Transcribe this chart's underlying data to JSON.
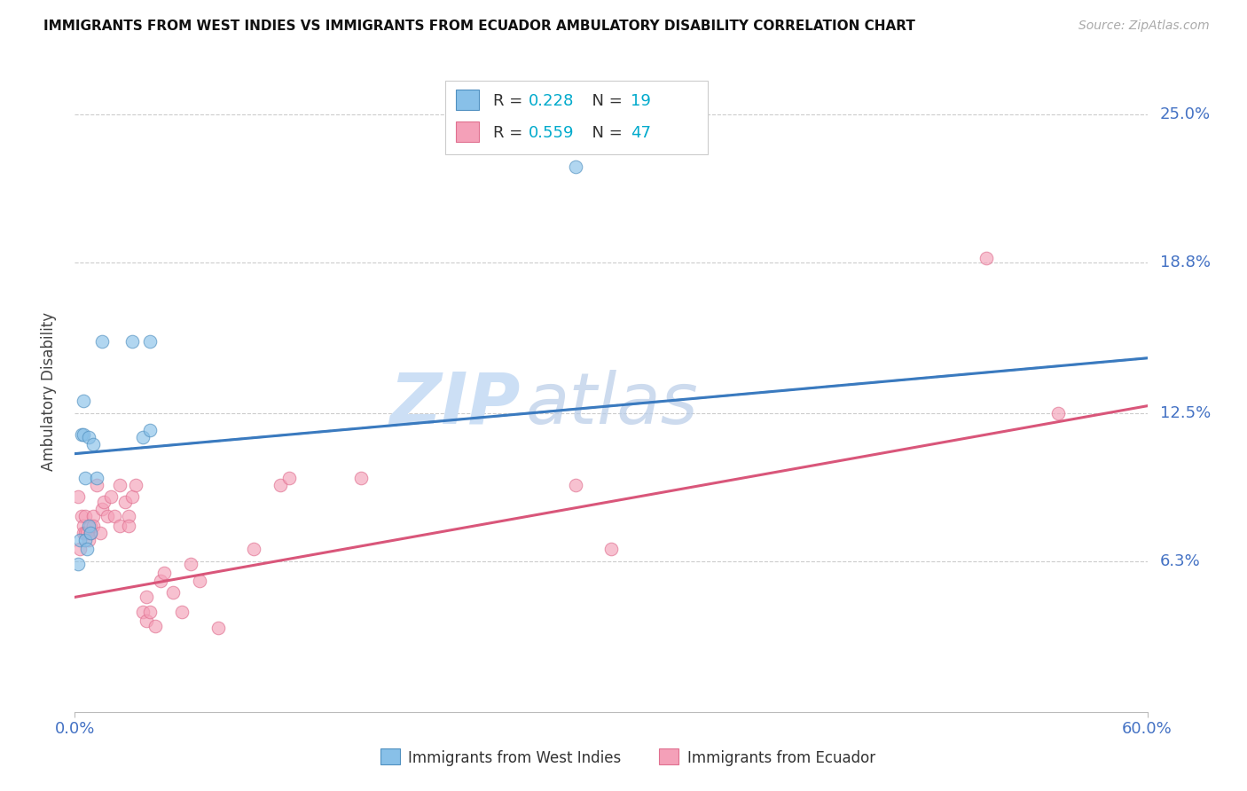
{
  "title": "IMMIGRANTS FROM WEST INDIES VS IMMIGRANTS FROM ECUADOR AMBULATORY DISABILITY CORRELATION CHART",
  "source": "Source: ZipAtlas.com",
  "ylabel": "Ambulatory Disability",
  "ytick_labels": [
    "25.0%",
    "18.8%",
    "12.5%",
    "6.3%"
  ],
  "ytick_values": [
    0.25,
    0.188,
    0.125,
    0.063
  ],
  "xlim": [
    0.0,
    0.6
  ],
  "ylim": [
    0.0,
    0.268
  ],
  "color_blue": "#88c0e8",
  "color_pink": "#f4a0b8",
  "color_blue_line": "#3a7abf",
  "color_pink_line": "#d9567a",
  "color_axis": "#4472C4",
  "watermark_color": "#ccdff5",
  "wi_line_x0": 0.0,
  "wi_line_y0": 0.108,
  "wi_line_x1": 0.6,
  "wi_line_y1": 0.148,
  "ec_line_x0": 0.0,
  "ec_line_y0": 0.048,
  "ec_line_x1": 0.6,
  "ec_line_y1": 0.128,
  "west_indies_x": [
    0.002,
    0.003,
    0.004,
    0.005,
    0.005,
    0.006,
    0.006,
    0.007,
    0.008,
    0.008,
    0.009,
    0.01,
    0.012,
    0.015,
    0.032,
    0.038,
    0.042,
    0.042,
    0.28
  ],
  "west_indies_y": [
    0.062,
    0.072,
    0.116,
    0.116,
    0.13,
    0.098,
    0.072,
    0.068,
    0.115,
    0.078,
    0.075,
    0.112,
    0.098,
    0.155,
    0.155,
    0.115,
    0.155,
    0.118,
    0.228
  ],
  "ecuador_x": [
    0.002,
    0.003,
    0.004,
    0.005,
    0.005,
    0.006,
    0.006,
    0.007,
    0.008,
    0.009,
    0.009,
    0.01,
    0.01,
    0.012,
    0.014,
    0.015,
    0.016,
    0.018,
    0.02,
    0.022,
    0.025,
    0.025,
    0.028,
    0.03,
    0.03,
    0.032,
    0.034,
    0.038,
    0.04,
    0.04,
    0.042,
    0.045,
    0.048,
    0.05,
    0.055,
    0.06,
    0.065,
    0.07,
    0.08,
    0.1,
    0.115,
    0.12,
    0.28,
    0.51,
    0.55,
    0.3,
    0.16
  ],
  "ecuador_y": [
    0.09,
    0.068,
    0.082,
    0.078,
    0.075,
    0.075,
    0.082,
    0.075,
    0.072,
    0.075,
    0.078,
    0.082,
    0.078,
    0.095,
    0.075,
    0.085,
    0.088,
    0.082,
    0.09,
    0.082,
    0.078,
    0.095,
    0.088,
    0.082,
    0.078,
    0.09,
    0.095,
    0.042,
    0.048,
    0.038,
    0.042,
    0.036,
    0.055,
    0.058,
    0.05,
    0.042,
    0.062,
    0.055,
    0.035,
    0.068,
    0.095,
    0.098,
    0.095,
    0.19,
    0.125,
    0.068,
    0.098
  ]
}
